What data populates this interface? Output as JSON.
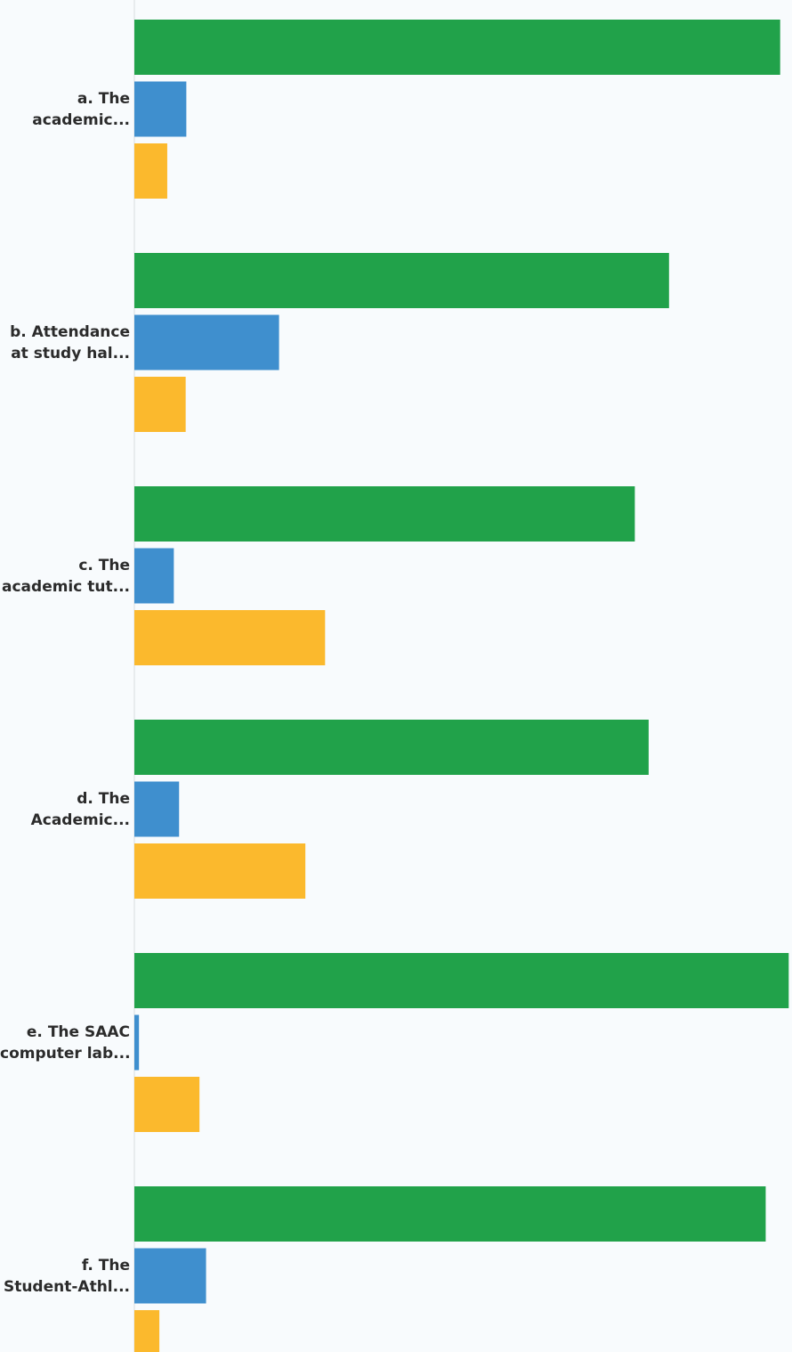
{
  "chart_data": {
    "type": "bar",
    "orientation": "horizontal",
    "categories": [
      [
        "a. The",
        "academic..."
      ],
      [
        "b. Attendance",
        "at study hal..."
      ],
      [
        "c. The",
        "academic tut..."
      ],
      [
        "d. The",
        "Academic..."
      ],
      [
        "e. The SAAC",
        "computer lab..."
      ],
      [
        "f. The",
        "Student-Athl..."
      ]
    ],
    "series": [
      {
        "color": "#21a24a",
        "values": [
          98.2,
          81.3,
          76.1,
          78.2,
          99.5,
          96.0
        ]
      },
      {
        "color": "#3f8fce",
        "values": [
          7.9,
          22.0,
          6.0,
          6.8,
          0.7,
          10.9
        ]
      },
      {
        "color": "#fbb92d",
        "values": [
          5.0,
          7.8,
          29.0,
          26.0,
          9.9,
          3.8
        ]
      }
    ],
    "xlim": [
      0,
      100
    ],
    "grid": false,
    "legend": "none"
  }
}
